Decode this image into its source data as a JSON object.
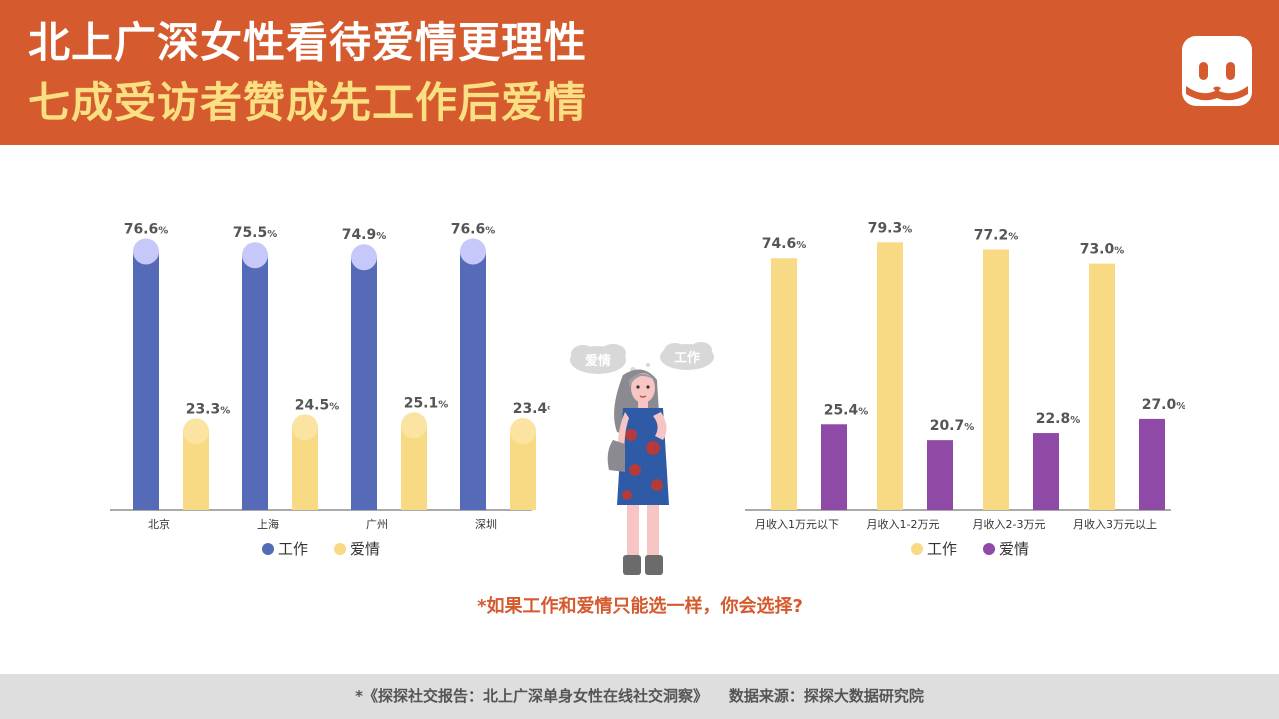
{
  "header": {
    "title_line1": "北上广深女性看待爱情更理性",
    "title_line2": "七成受访者赞成先工作后爱情"
  },
  "colors": {
    "header_bg": "#d55a2e",
    "title_accent": "#fbe083",
    "work_city": "#566bb8",
    "work_city_cap": "#c5c8f8",
    "love_yellow": "#f8d984",
    "love_cap": "#fbe3a2",
    "love_purple": "#8e4aa6",
    "footer_bg": "#dedede"
  },
  "illustration": {
    "bubble_left": "爱情",
    "bubble_right": "工作"
  },
  "question": "*如果工作和爱情只能选一样，你会选择?",
  "footer": "*《探探社交报告：北上广深单身女性在线社交洞察》    数据来源：探探大数据研究院",
  "chart_data": [
    {
      "type": "bar",
      "categories": [
        "北京",
        "上海",
        "广州",
        "深圳"
      ],
      "series": [
        {
          "name": "工作",
          "values": [
            76.6,
            75.5,
            74.9,
            76.6
          ]
        },
        {
          "name": "爱情",
          "values": [
            23.3,
            24.5,
            25.1,
            23.4
          ]
        }
      ],
      "value_suffix": "%",
      "legend": "bottom-center",
      "grid": false
    },
    {
      "type": "bar",
      "categories": [
        "月收入1万元以下",
        "月收入1-2万元",
        "月收入2-3万元",
        "月收入3万元以上"
      ],
      "series": [
        {
          "name": "工作",
          "values": [
            74.6,
            79.3,
            77.2,
            73.0
          ]
        },
        {
          "name": "爱情",
          "values": [
            25.4,
            20.7,
            22.8,
            27.0
          ]
        }
      ],
      "value_suffix": "%",
      "legend": "bottom-center",
      "grid": false
    }
  ]
}
